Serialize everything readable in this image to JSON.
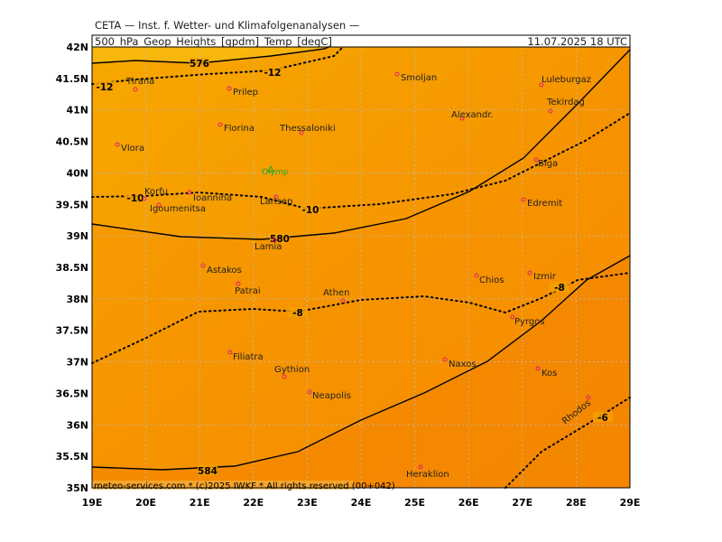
{
  "header": "CETA — Inst. f. Wetter- und Klimafolgenanalysen —",
  "title": "500_hPa_Geop_Heights_[gpdm]_Temp_[degC]",
  "valid_time": "11.07.2025  18 UTC",
  "footer": "meteo-services.com * (c)2025 IWKF * All rights reserved (00+042)",
  "lon_labels": [
    "19E",
    "20E",
    "21E",
    "22E",
    "23E",
    "24E",
    "25E",
    "26E",
    "27E",
    "28E",
    "29E"
  ],
  "lat_labels": [
    "42N",
    "41.5N",
    "41N",
    "40.5N",
    "40N",
    "39.5N",
    "39N",
    "38.5N",
    "38N",
    "37.5N",
    "37N",
    "36.5N",
    "36N",
    "35.5N",
    "35N"
  ],
  "cities": [
    {
      "name": "Tirana"
    },
    {
      "name": "Prilep"
    },
    {
      "name": "Smoljan"
    },
    {
      "name": "Luleburgaz"
    },
    {
      "name": "Alexandr."
    },
    {
      "name": "Tekirdag"
    },
    {
      "name": "Florina"
    },
    {
      "name": "Thessaloniki"
    },
    {
      "name": "Vlora"
    },
    {
      "name": "Biga"
    },
    {
      "name": "Olymp"
    },
    {
      "name": "Korfu"
    },
    {
      "name": "Ioannina"
    },
    {
      "name": "Larisep"
    },
    {
      "name": "Igoumenitsa"
    },
    {
      "name": "Edremit"
    },
    {
      "name": "Lamia"
    },
    {
      "name": "Astakos"
    },
    {
      "name": "Chios"
    },
    {
      "name": "Izmir"
    },
    {
      "name": "Patrai"
    },
    {
      "name": "Athen"
    },
    {
      "name": "Pyrgos"
    },
    {
      "name": "Filiatra"
    },
    {
      "name": "Naxos"
    },
    {
      "name": "Gythion"
    },
    {
      "name": "Kos"
    },
    {
      "name": "Neapolis"
    },
    {
      "name": "Rhodos"
    },
    {
      "name": "Heraklion"
    }
  ],
  "contours": [
    {
      "label": 576,
      "style": "solid"
    },
    {
      "label": 580,
      "style": "solid"
    },
    {
      "label": 584,
      "style": "solid"
    },
    {
      "label": -12,
      "style": "dotted"
    },
    {
      "label": -10,
      "style": "dotted"
    },
    {
      "label": -8,
      "style": "dotted"
    },
    {
      "label": -6,
      "style": "dotted"
    }
  ]
}
